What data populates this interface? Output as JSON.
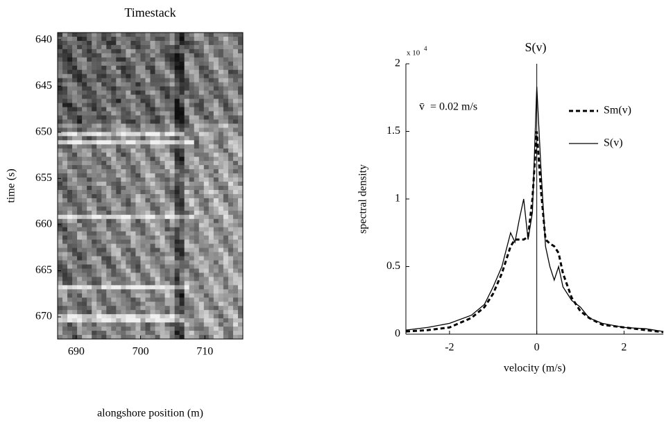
{
  "chart_data": [
    {
      "type": "image",
      "title": "Timestack",
      "xlabel": "alongshore position (m)",
      "ylabel": "time (s)",
      "xlim": [
        687.1,
        715.9
      ],
      "xticks": [
        690,
        700,
        710
      ],
      "ylim": [
        639.2,
        672.4
      ],
      "yticks": [
        640,
        645,
        650,
        655,
        660,
        665,
        670
      ],
      "y_inverted": true,
      "colormap": "gray"
    },
    {
      "type": "line",
      "title": "S(v)",
      "xlabel": "velocity (m/s)",
      "ylabel": "spectral density",
      "y_multiplier": "x 10",
      "y_multiplier_exponent": "4",
      "annotation": "v̄  = 0.02 m/s",
      "x": [
        -3,
        -2.5,
        -2,
        -1.5,
        -1.2,
        -1,
        -0.8,
        -0.6,
        -0.5,
        -0.4,
        -0.3,
        -0.2,
        -0.1,
        0,
        0.1,
        0.2,
        0.3,
        0.4,
        0.5,
        0.6,
        0.8,
        1,
        1.2,
        1.5,
        2,
        2.5,
        2.9
      ],
      "series": [
        {
          "name": "Sm(v)",
          "color": "#000000",
          "dash": true,
          "values": [
            200,
            300,
            500,
            1200,
            2000,
            3000,
            4500,
            6500,
            7000,
            7000,
            7000,
            7200,
            10000,
            15000,
            10500,
            7000,
            6700,
            6500,
            6000,
            4500,
            2700,
            1700,
            1200,
            700,
            500,
            300,
            150
          ]
        },
        {
          "name": "S(v)",
          "color": "#000000",
          "dash": false,
          "values": [
            300,
            500,
            800,
            1400,
            2200,
            3500,
            5000,
            7500,
            6800,
            8500,
            10000,
            7000,
            9000,
            18300,
            12000,
            6500,
            5000,
            4000,
            5000,
            3500,
            2500,
            2000,
            1200,
            800,
            500,
            400,
            200
          ]
        }
      ],
      "xlim": [
        -3,
        2.9
      ],
      "xticks": [
        -2,
        0,
        2
      ],
      "ylim": [
        0,
        20000
      ],
      "yticks": [
        {
          "value": 0,
          "label": "0"
        },
        {
          "value": 5000,
          "label": "0.5"
        },
        {
          "value": 10000,
          "label": "1"
        },
        {
          "value": 15000,
          "label": "1.5"
        },
        {
          "value": 20000,
          "label": "2"
        }
      ],
      "legend": "upper-right",
      "grid": false
    }
  ]
}
